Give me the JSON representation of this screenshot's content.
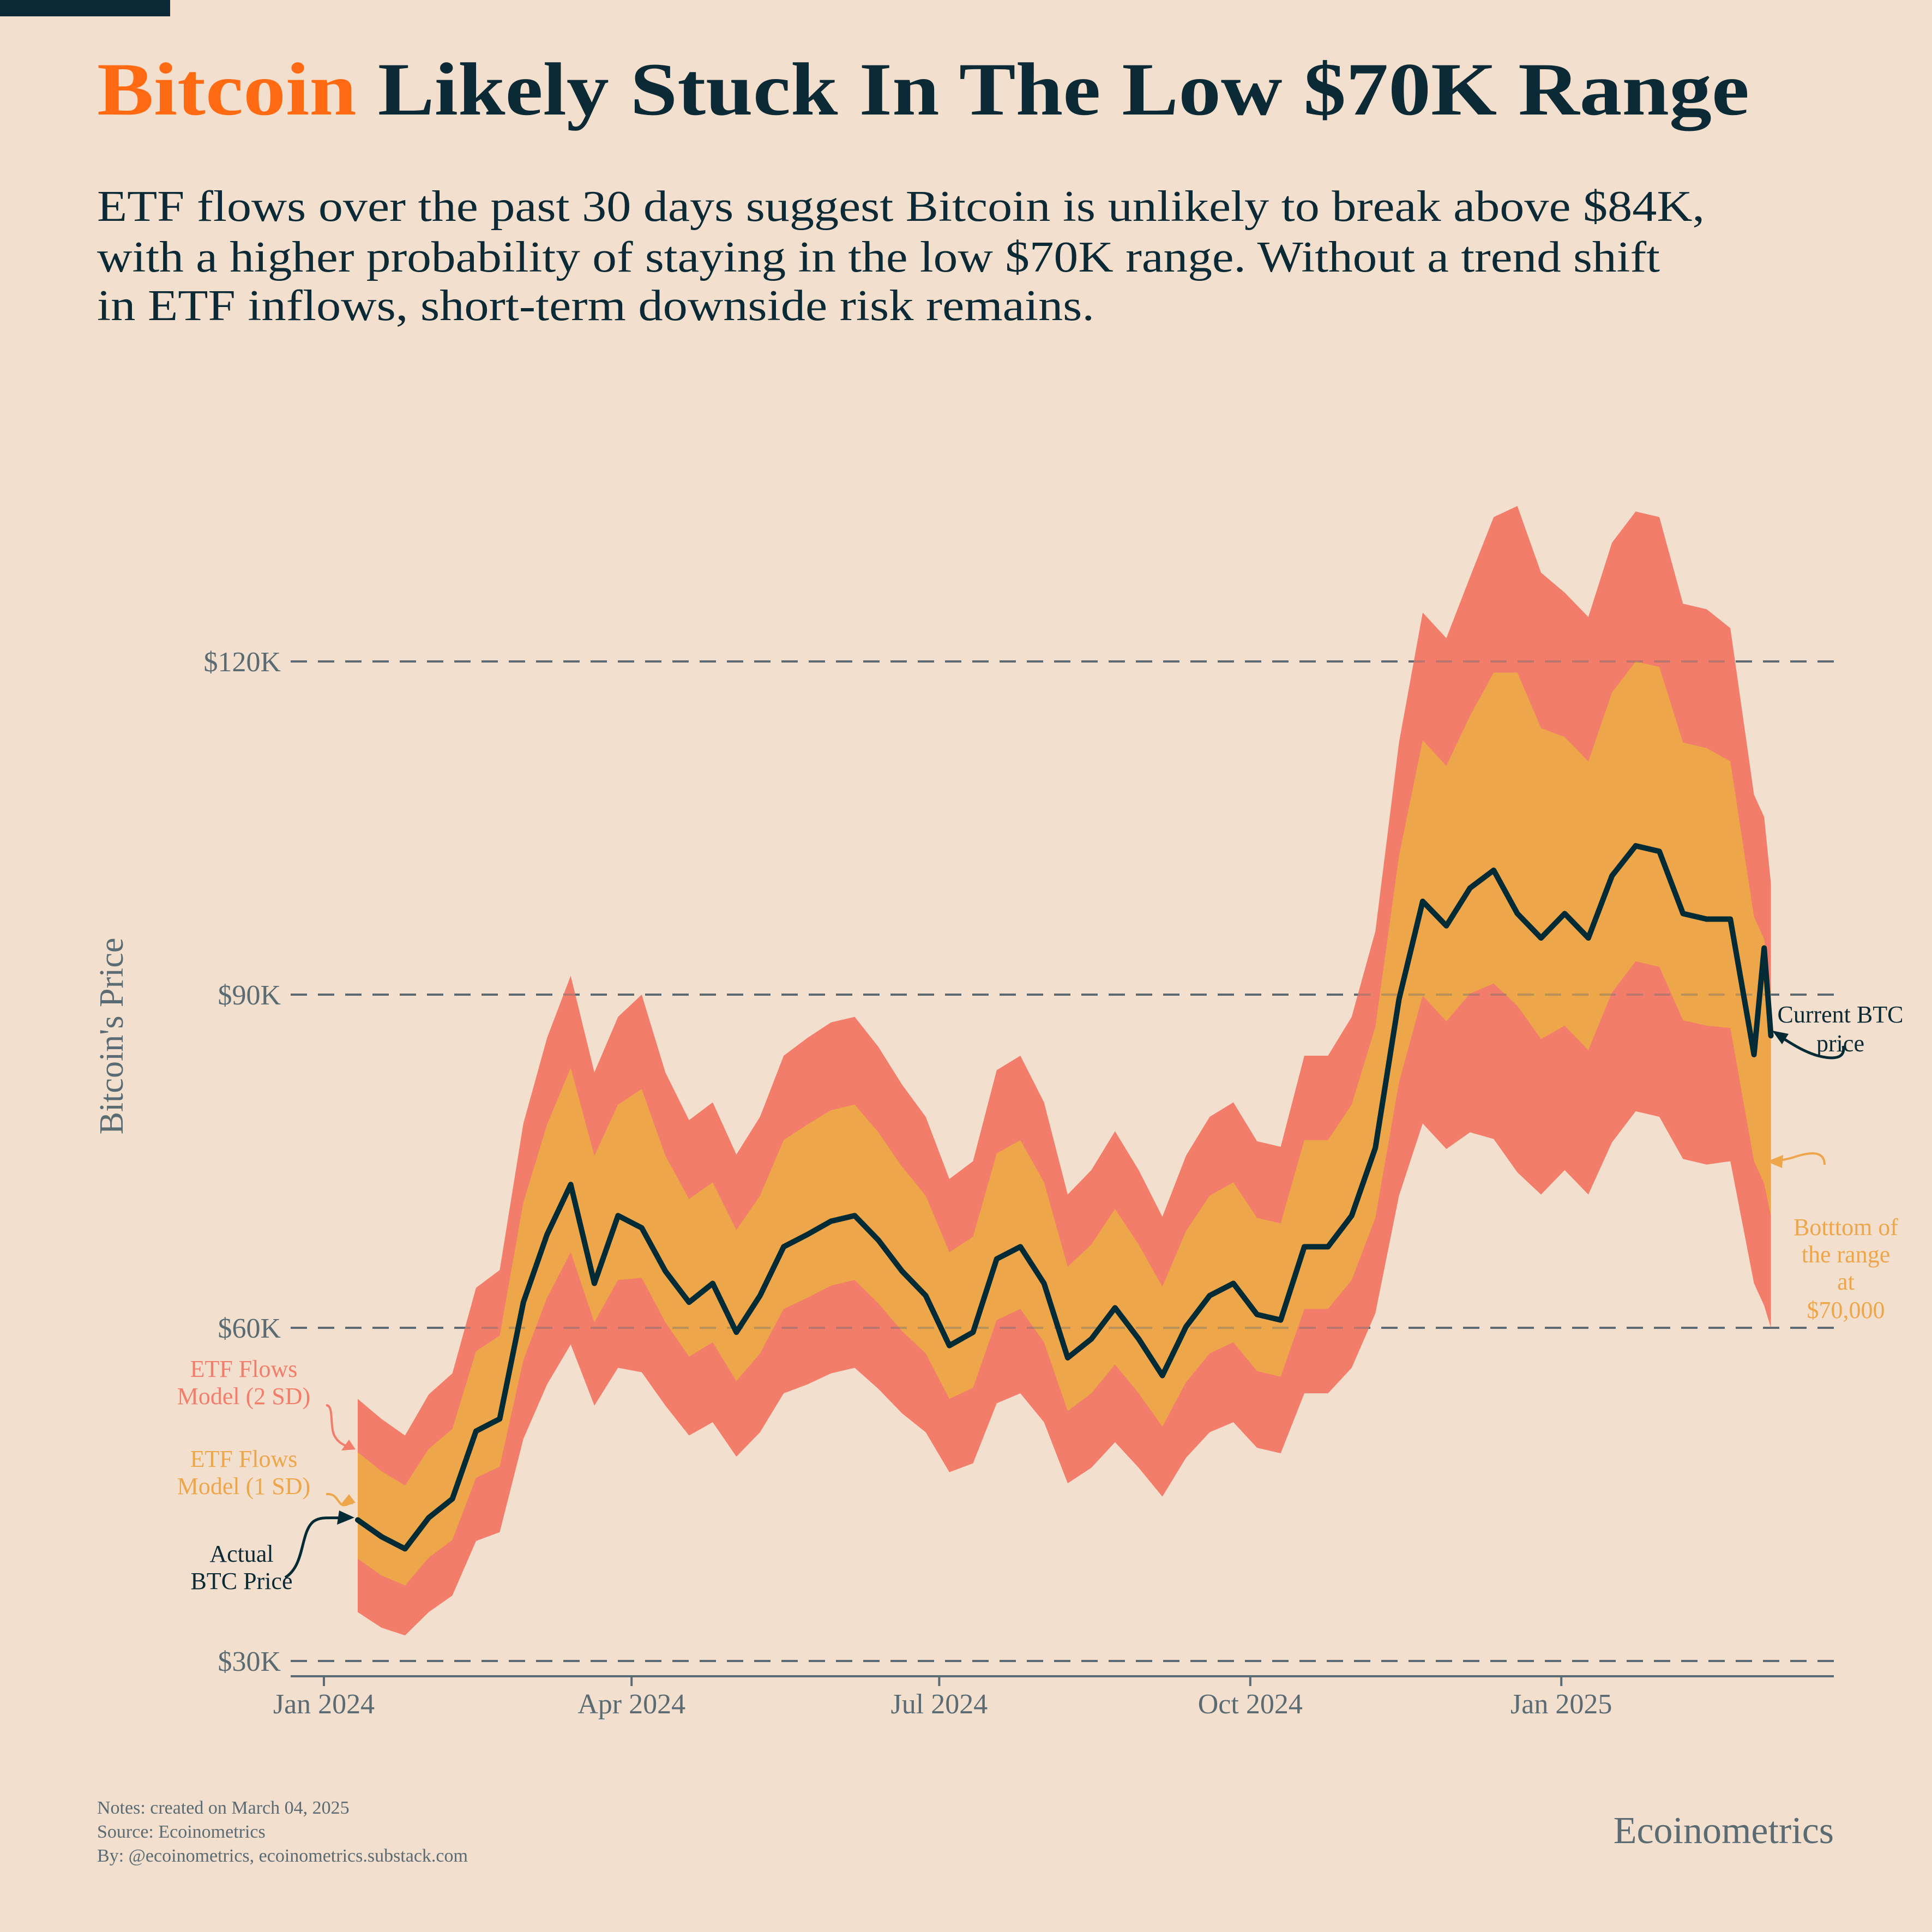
{
  "header": {
    "title_highlight": "Bitcoin",
    "title_rest": " Likely Stuck In The Low $70K Range",
    "subtitle_lines": [
      "ETF flows over the past 30 days suggest Bitcoin is unlikely to break above $84K,",
      "with a higher probability of staying in the low $70K range. Without a trend shift",
      "in ETF inflows, short-term downside risk remains."
    ]
  },
  "colors": {
    "background": "#f2dfce",
    "title": "#0b2a35",
    "highlight": "#ff6a13",
    "band_2sd": "#f27d6b",
    "band_1sd": "#eda64a",
    "price_line": "#022b36",
    "grid": "#5b6b73"
  },
  "chart_data": {
    "type": "line",
    "ylabel": "Bitcoin's Price",
    "xlabel": "",
    "ylim": [
      30,
      125
    ],
    "y_unit": "thousand USD",
    "y_ticks": [
      30,
      60,
      90,
      120
    ],
    "y_tick_labels": [
      "$30K",
      "$60K",
      "$90K",
      "$120K"
    ],
    "x_ticks": [
      "2024-01-01",
      "2024-04-01",
      "2024-07-01",
      "2024-10-01",
      "2025-01-01"
    ],
    "x_tick_labels": [
      "Jan 2024",
      "Apr 2024",
      "Jul 2024",
      "Oct 2024",
      "Jan 2025"
    ],
    "grid": "horizontal dashed",
    "dates": [
      "2024-01-11",
      "2024-01-18",
      "2024-01-25",
      "2024-02-01",
      "2024-02-08",
      "2024-02-15",
      "2024-02-22",
      "2024-02-29",
      "2024-03-07",
      "2024-03-14",
      "2024-03-21",
      "2024-03-28",
      "2024-04-04",
      "2024-04-11",
      "2024-04-18",
      "2024-04-25",
      "2024-05-02",
      "2024-05-09",
      "2024-05-16",
      "2024-05-23",
      "2024-05-30",
      "2024-06-06",
      "2024-06-13",
      "2024-06-20",
      "2024-06-27",
      "2024-07-04",
      "2024-07-11",
      "2024-07-18",
      "2024-07-25",
      "2024-08-01",
      "2024-08-08",
      "2024-08-15",
      "2024-08-22",
      "2024-08-29",
      "2024-09-05",
      "2024-09-12",
      "2024-09-19",
      "2024-09-26",
      "2024-10-03",
      "2024-10-10",
      "2024-10-17",
      "2024-10-24",
      "2024-10-31",
      "2024-11-07",
      "2024-11-14",
      "2024-11-21",
      "2024-11-28",
      "2024-12-05",
      "2024-12-12",
      "2024-12-19",
      "2024-12-26",
      "2025-01-02",
      "2025-01-09",
      "2025-01-16",
      "2025-01-23",
      "2025-01-30",
      "2025-02-06",
      "2025-02-13",
      "2025-02-20",
      "2025-02-27",
      "2025-03-02",
      "2025-03-04"
    ],
    "series": [
      {
        "name": "Actual BTC Price",
        "values": [
          42.7,
          41.2,
          40.1,
          42.9,
          44.6,
          50.7,
          51.8,
          62.3,
          68.4,
          72.9,
          64.0,
          70.1,
          69.0,
          65.1,
          62.3,
          64.0,
          59.6,
          62.9,
          67.3,
          68.4,
          69.6,
          70.1,
          67.9,
          65.1,
          62.9,
          58.4,
          59.6,
          66.2,
          67.3,
          64.0,
          57.3,
          59.0,
          61.8,
          59.0,
          55.7,
          60.1,
          62.9,
          64.0,
          61.2,
          60.7,
          67.3,
          67.3,
          70.1,
          76.2,
          89.6,
          98.4,
          96.2,
          99.6,
          101.2,
          97.3,
          95.1,
          97.3,
          95.1,
          100.7,
          103.4,
          102.9,
          97.3,
          96.8,
          96.8,
          84.6,
          94.2,
          86.3
        ]
      },
      {
        "name": "ETF Flows Model",
        "mid": [
          44.0,
          42.4,
          41.3,
          44.2,
          45.9,
          52.2,
          53.4,
          64.2,
          70.5,
          75.1,
          68.0,
          72.2,
          73.0,
          68.0,
          64.5,
          65.9,
          62.0,
          64.8,
          69.3,
          70.5,
          71.7,
          72.2,
          69.9,
          67.1,
          64.8,
          60.2,
          61.4,
          68.2,
          69.3,
          65.9,
          59.0,
          60.8,
          63.7,
          60.8,
          57.4,
          61.9,
          64.8,
          65.9,
          63.0,
          62.5,
          69.3,
          69.3,
          72.2,
          78.5,
          92.3,
          101.4,
          99.1,
          102.6,
          105.0,
          104.0,
          100.0,
          100.2,
          98.0,
          103.7,
          106.5,
          106.0,
          100.2,
          99.7,
          99.0,
          86.0,
          84.0,
          80.0
        ],
        "sd": [
          4.8,
          4.7,
          4.5,
          4.9,
          5.0,
          5.7,
          5.9,
          7.1,
          7.8,
          8.3,
          7.5,
          7.9,
          8.5,
          7.5,
          7.1,
          7.2,
          6.8,
          7.1,
          7.6,
          7.8,
          7.9,
          7.9,
          7.7,
          7.4,
          7.1,
          6.6,
          6.8,
          7.5,
          7.6,
          7.2,
          6.5,
          6.7,
          7.0,
          6.7,
          6.3,
          6.8,
          7.1,
          7.2,
          6.9,
          6.9,
          7.6,
          7.6,
          7.9,
          8.6,
          10.2,
          11.5,
          11.5,
          12.5,
          14.0,
          15.0,
          14.0,
          13.0,
          13.0,
          13.5,
          13.5,
          13.5,
          12.5,
          12.5,
          12.0,
          11.0,
          11.0,
          10.0
        ]
      }
    ]
  },
  "annotations": {
    "band_2sd": [
      "ETF Flows",
      "Model (2 SD)"
    ],
    "band_1sd": [
      "ETF Flows",
      "Model (1 SD)"
    ],
    "actual": [
      "Actual",
      "BTC Price"
    ],
    "current": [
      "Current BTC",
      "price"
    ],
    "bottom": [
      "Botttom of",
      "the range",
      "at",
      "$70,000"
    ]
  },
  "footer": {
    "notes": "Notes: created on March 04, 2025",
    "source": "Source: Ecoinometrics",
    "by": "By: @ecoinometrics, ecoinometrics.substack.com",
    "brand": "Ecoinometrics"
  }
}
